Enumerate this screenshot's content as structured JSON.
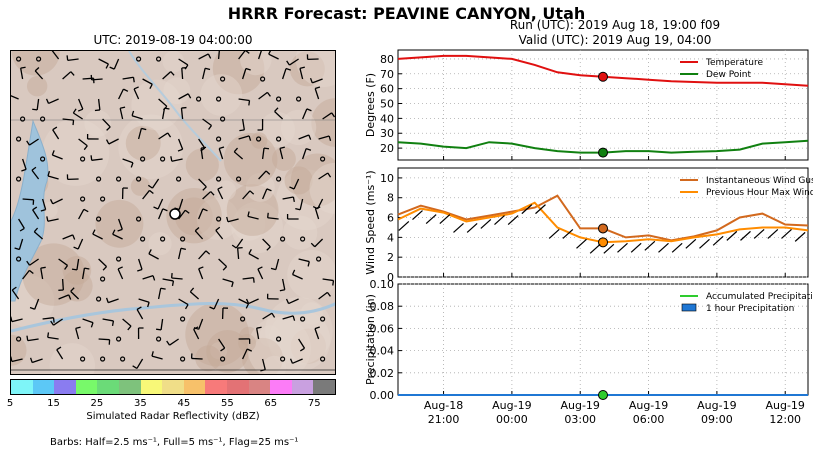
{
  "header": {
    "title": "HRRR Forecast: PEAVINE CANYON, Utah",
    "map_title": "UTC: 2019-08-19 04:00:00",
    "run_line": "Run (UTC): 2019 Aug 18, 19:00 f09",
    "valid_line": "Valid (UTC): 2019 Aug 19, 04:00"
  },
  "colorbar": {
    "label": "Simulated Radar Reflectivity (dBZ)",
    "tick_labels": [
      "5",
      "15",
      "25",
      "35",
      "45",
      "55",
      "65",
      "75"
    ],
    "colors": [
      "#7ef5f8",
      "#5cc8f6",
      "#8a7cf0",
      "#78f96a",
      "#6bdb78",
      "#7ec27c",
      "#f8f878",
      "#f0de88",
      "#f7c16a",
      "#f77a7a",
      "#e37275",
      "#d98483",
      "#fc7cf7",
      "#c9a0e0",
      "#7a7a7a"
    ]
  },
  "barbs_note": "Barbs: Half=2.5 ms⁻¹, Full=5 ms⁻¹, Flag=25 ms⁻¹",
  "chart_data": [
    {
      "type": "line",
      "panel": "temperature",
      "ylabel": "Degrees (F)",
      "ylim": [
        12,
        86
      ],
      "yticks": [
        20,
        30,
        40,
        50,
        60,
        70,
        80
      ],
      "grid": true,
      "legend_position": "top-right",
      "x_hours": [
        0,
        1,
        2,
        3,
        4,
        5,
        6,
        7,
        8,
        9,
        10,
        11,
        12,
        13,
        14,
        15,
        16,
        17,
        18
      ],
      "series": [
        {
          "name": "Temperature",
          "color": "#e01010",
          "values": [
            80,
            81,
            82,
            82,
            81,
            80,
            76,
            71,
            69,
            68,
            67,
            66,
            65,
            64.5,
            64,
            64,
            64,
            63,
            62
          ]
        },
        {
          "name": "Dew Point",
          "color": "#108010",
          "values": [
            24,
            23,
            21,
            20,
            24,
            23,
            20,
            18,
            17,
            17,
            18,
            18,
            17,
            17.5,
            18,
            19,
            23,
            24,
            25
          ]
        }
      ],
      "marker": {
        "x": 9,
        "values": [
          68,
          17
        ]
      }
    },
    {
      "type": "line",
      "panel": "wind",
      "ylabel": "Wind Speed (ms⁻¹)",
      "ylim": [
        0,
        11
      ],
      "yticks": [
        0,
        2,
        4,
        6,
        8,
        10
      ],
      "grid": true,
      "legend_position": "top-right",
      "x_hours": [
        0,
        1,
        2,
        3,
        4,
        5,
        6,
        7,
        8,
        9,
        10,
        11,
        12,
        13,
        14,
        15,
        16,
        17,
        18
      ],
      "series": [
        {
          "name": "Instantaneous Wind Gust",
          "color": "#d2691e",
          "values": [
            6.3,
            7.2,
            6.6,
            5.8,
            6.2,
            6.6,
            7.0,
            8.2,
            4.9,
            4.9,
            4.0,
            4.2,
            3.7,
            4.1,
            4.7,
            6.0,
            6.4,
            5.3,
            5.2
          ]
        },
        {
          "name": "Previous Hour Max Wind",
          "color": "#ff8c00",
          "values": [
            5.8,
            6.9,
            6.5,
            5.6,
            6.0,
            6.4,
            7.5,
            5.0,
            4.0,
            3.5,
            3.6,
            3.8,
            3.6,
            4.0,
            4.3,
            4.8,
            5.0,
            5.0,
            4.7
          ]
        }
      ],
      "marker": {
        "x": 9,
        "values": [
          4.9,
          3.5
        ]
      }
    },
    {
      "type": "line",
      "panel": "precipitation",
      "ylabel": "Precipitation (in)",
      "ylim": [
        0,
        0.1
      ],
      "yticks": [
        0.0,
        0.02,
        0.04,
        0.06,
        0.08,
        0.1
      ],
      "ytick_labels": [
        "0.00",
        "0.02",
        "0.04",
        "0.06",
        "0.08",
        "0.10"
      ],
      "grid": true,
      "legend_position": "top-right",
      "x_hours": [
        0,
        1,
        2,
        3,
        4,
        5,
        6,
        7,
        8,
        9,
        10,
        11,
        12,
        13,
        14,
        15,
        16,
        17,
        18
      ],
      "series": [
        {
          "name": "Accumulated Precipitation",
          "color": "#2ecc2e",
          "values": [
            0,
            0,
            0,
            0,
            0,
            0,
            0,
            0,
            0,
            0,
            0,
            0,
            0,
            0,
            0,
            0,
            0,
            0,
            0
          ]
        },
        {
          "name": "1 hour Precipitation",
          "color": "#1f77d4",
          "values": [
            0,
            0,
            0,
            0,
            0,
            0,
            0,
            0,
            0,
            0,
            0,
            0,
            0,
            0,
            0,
            0,
            0,
            0,
            0
          ]
        }
      ],
      "marker": {
        "x": 9,
        "values": [
          0
        ]
      },
      "xticks": [
        {
          "hour": 2,
          "date": "Aug-18",
          "time": "21:00"
        },
        {
          "hour": 5,
          "date": "Aug-19",
          "time": "00:00"
        },
        {
          "hour": 8,
          "date": "Aug-19",
          "time": "03:00"
        },
        {
          "hour": 11,
          "date": "Aug-19",
          "time": "06:00"
        },
        {
          "hour": 14,
          "date": "Aug-19",
          "time": "09:00"
        },
        {
          "hour": 17,
          "date": "Aug-19",
          "time": "12:00"
        }
      ]
    }
  ]
}
